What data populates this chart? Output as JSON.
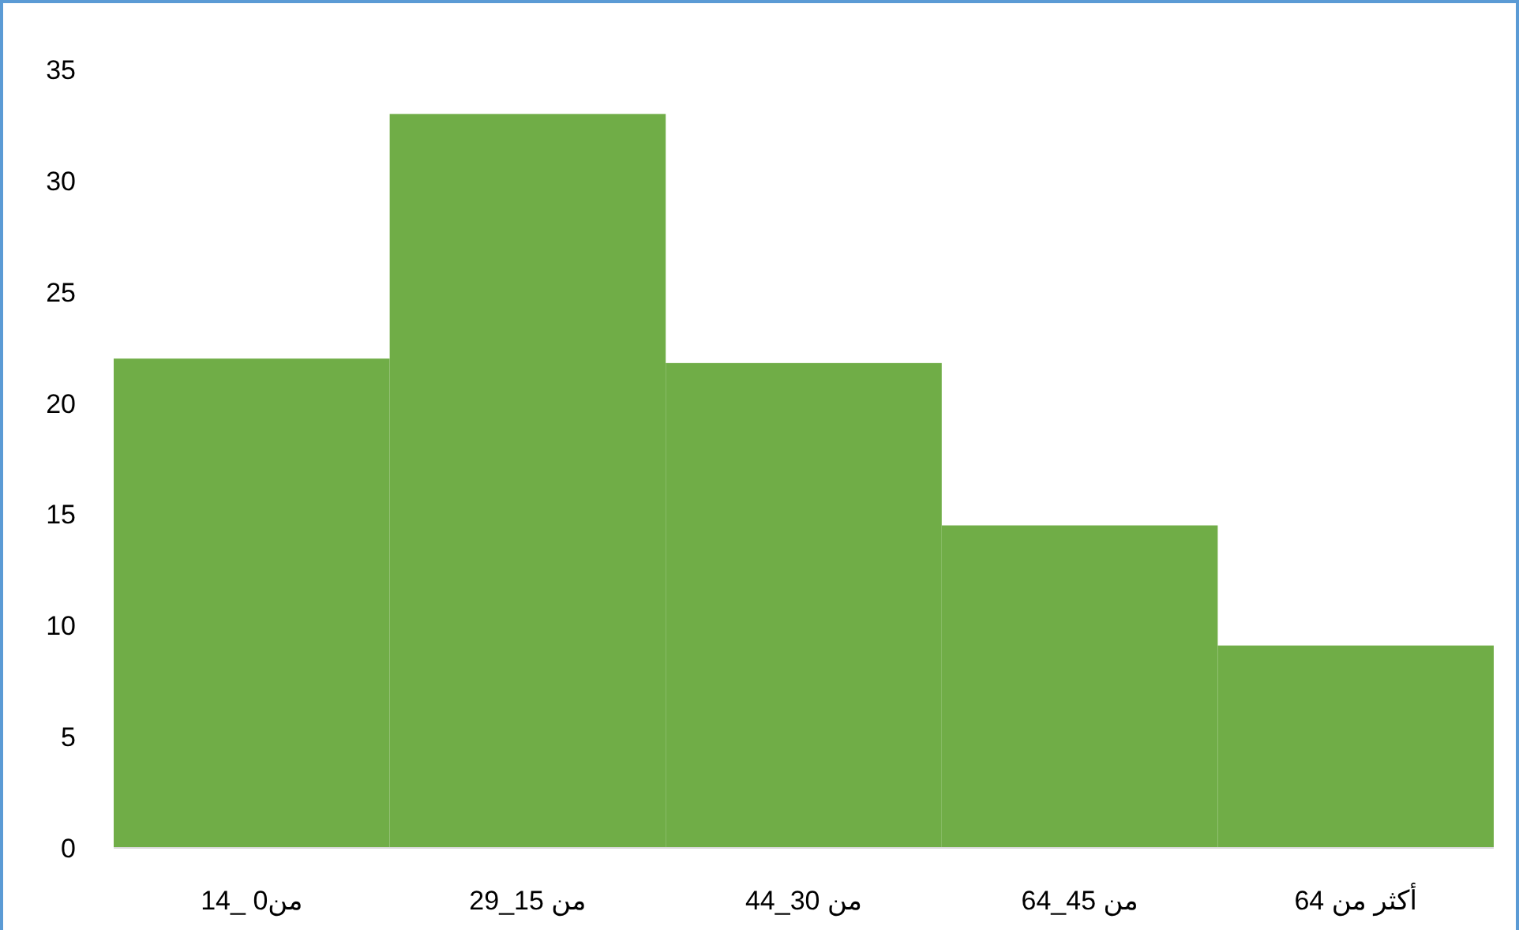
{
  "chart_data": {
    "type": "bar",
    "categories": [
      "من0 _14",
      "من 15_29",
      "من 30_44",
      "من 45_64",
      "أكثر من 64"
    ],
    "values": [
      22,
      33,
      21.8,
      14.5,
      9.1
    ],
    "color": "#70ad47",
    "ylim": [
      0,
      35
    ],
    "yticks": [
      0,
      5,
      10,
      15,
      20,
      25,
      30,
      35
    ]
  }
}
